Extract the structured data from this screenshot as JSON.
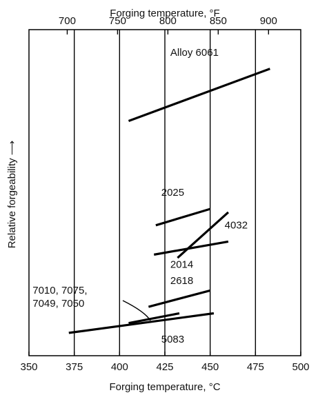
{
  "chart_data": {
    "type": "line",
    "title": "",
    "xlabel_bottom": "Forging temperature, °C",
    "xlabel_top": "Forging temperature, °F",
    "ylabel": "Relative forgeability ⟶",
    "xlim": [
      350,
      500
    ],
    "x_ticks": [
      350,
      375,
      400,
      425,
      450,
      475,
      500
    ],
    "x_tick_labels": [
      "350",
      "375",
      "400",
      "425",
      "450",
      "475",
      "500"
    ],
    "top_ticks": [
      700,
      750,
      800,
      850,
      900
    ],
    "top_tick_labels": [
      "700",
      "750",
      "800",
      "850",
      "900"
    ],
    "ylim": [
      0,
      100
    ],
    "vertical_grid": [
      375,
      400,
      425,
      450,
      475
    ],
    "series": [
      {
        "name": "Alloy 6061",
        "x": [
          405,
          483
        ],
        "y": [
          72,
          88
        ]
      },
      {
        "name": "2025",
        "x": [
          420,
          450
        ],
        "y": [
          40,
          45
        ]
      },
      {
        "name": "4032",
        "x": [
          432,
          460
        ],
        "y": [
          30,
          44
        ]
      },
      {
        "name": "2014",
        "x": [
          419,
          460
        ],
        "y": [
          31,
          35
        ]
      },
      {
        "name": "2618",
        "x": [
          416,
          450
        ],
        "y": [
          15,
          20
        ]
      },
      {
        "name": "7010, 7075, 7049, 7050",
        "x": [
          405,
          433
        ],
        "y": [
          10,
          13
        ]
      },
      {
        "name": "5083",
        "x": [
          372,
          452
        ],
        "y": [
          7,
          13
        ]
      }
    ],
    "annotations": [
      {
        "text": "Alloy 6061",
        "x": 428,
        "y": 92
      },
      {
        "text": "2025",
        "x": 423,
        "y": 49
      },
      {
        "text": "4032",
        "x": 458,
        "y": 39
      },
      {
        "text": "2014",
        "x": 428,
        "y": 27
      },
      {
        "text": "2618",
        "x": 428,
        "y": 22
      },
      {
        "text": "7010, 7075,",
        "x": 352,
        "y": 19
      },
      {
        "text": "7049, 7050",
        "x": 352,
        "y": 15
      },
      {
        "text": "5083",
        "x": 423,
        "y": 4
      }
    ]
  }
}
